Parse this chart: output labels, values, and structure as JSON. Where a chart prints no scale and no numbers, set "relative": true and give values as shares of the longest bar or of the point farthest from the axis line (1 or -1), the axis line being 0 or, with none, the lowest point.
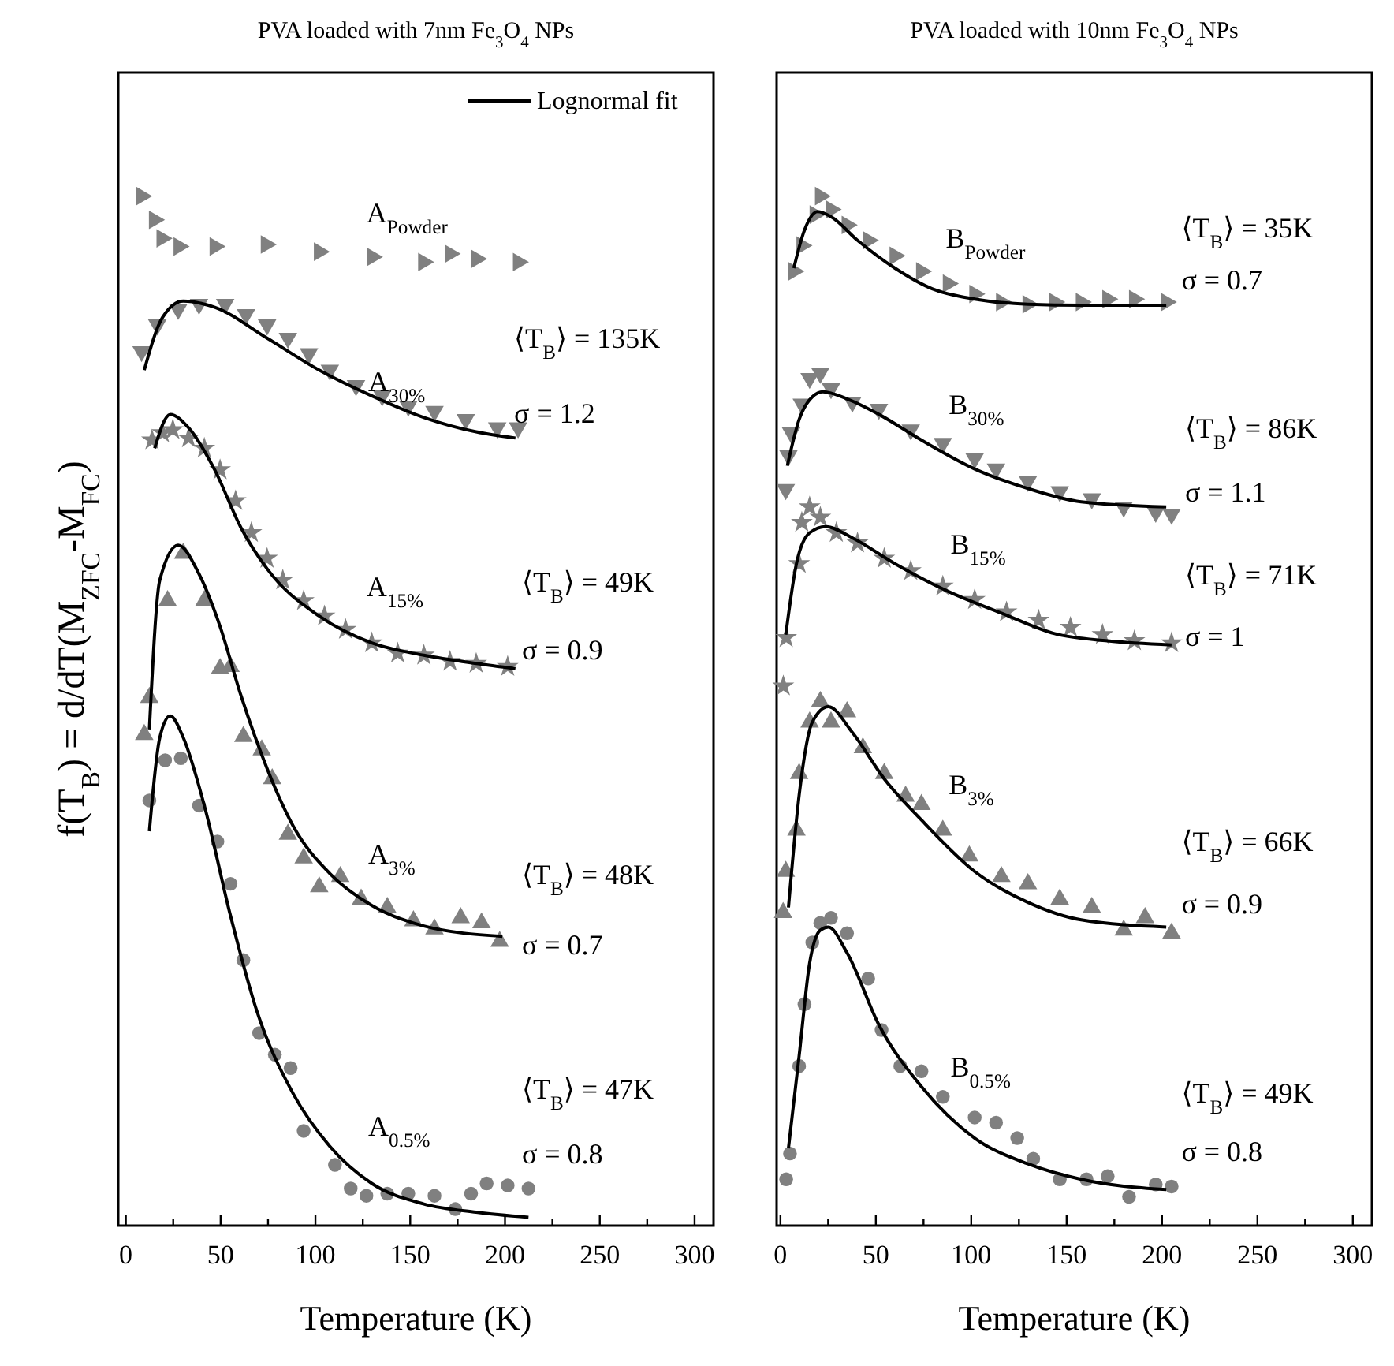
{
  "chart_data": [
    {
      "type": "scatter",
      "relative": true,
      "title": "PVA loaded with 7nm Fe$_{3}$O$_{4}$ NPs",
      "xlabel": "Temperature (K)",
      "ylabel": "f(T$_{B}$) = d/dT(M$_{ZFC}$-M$_{FC}$)",
      "xlim": [
        -4,
        310
      ],
      "xticks": [
        0,
        {
          "value": 25,
          "label": null
        },
        50,
        {
          "value": 75,
          "label": null
        },
        100,
        {
          "value": 125,
          "label": null
        },
        150,
        {
          "value": 175,
          "label": null
        },
        200,
        {
          "value": 225,
          "label": null
        },
        250,
        {
          "value": 275,
          "label": null
        },
        300
      ],
      "legend": "top right",
      "series": [
        {
          "marker": "triangle-right",
          "color": "#808080",
          "x": [
            8.3,
            15,
            19,
            28,
            47,
            74,
            102,
            130,
            157,
            171,
            185,
            207
          ],
          "values": [
            1.0,
            0.977,
            0.959,
            0.951,
            0.951,
            0.953,
            0.946,
            0.941,
            0.936,
            0.944,
            0.939,
            0.936
          ]
        },
        {
          "marker": "triangle-down",
          "color": "#808080",
          "x": [
            8.3,
            16.6,
            27.6,
            38.6,
            52.4,
            63.4,
            74.5,
            85.5,
            96.6,
            107.6,
            121.4,
            135.2,
            149,
            162.8,
            179.3,
            195.9,
            206.9
          ],
          "values": [
            0.849,
            0.875,
            0.89,
            0.895,
            0.895,
            0.885,
            0.875,
            0.862,
            0.847,
            0.831,
            0.816,
            0.806,
            0.796,
            0.791,
            0.783,
            0.775,
            0.775
          ]
        },
        {
          "marker": "star",
          "color": "#808080",
          "x": [
            13.8,
            19.3,
            24.8,
            33.1,
            41.4,
            49.7,
            57.9,
            66.2,
            74.5,
            82.8,
            93.8,
            104.8,
            115.9,
            129.7,
            143.4,
            157.2,
            171,
            184.8,
            201.4
          ],
          "values": [
            0.763,
            0.77,
            0.773,
            0.765,
            0.755,
            0.734,
            0.704,
            0.673,
            0.648,
            0.627,
            0.607,
            0.592,
            0.579,
            0.566,
            0.556,
            0.554,
            0.548,
            0.546,
            0.543
          ]
        },
        {
          "marker": "triangle",
          "color": "#808080",
          "x": [
            9.7,
            12.4,
            22,
            30.3,
            41.4,
            49.7,
            55.2,
            62,
            71.7,
            77.2,
            85.5,
            93.8,
            102,
            113.1,
            124.1,
            137.9,
            151.7,
            162.8,
            176.6,
            187.6,
            197.2
          ],
          "values": [
            0.477,
            0.513,
            0.607,
            0.653,
            0.607,
            0.541,
            0.543,
            0.475,
            0.462,
            0.434,
            0.38,
            0.357,
            0.329,
            0.339,
            0.317,
            0.309,
            0.296,
            0.288,
            0.299,
            0.294,
            0.276
          ]
        },
        {
          "marker": "circle",
          "color": "#808080",
          "x": [
            12.4,
            20.7,
            29,
            38.6,
            48.3,
            55.2,
            62,
            70.3,
            78.6,
            86.9,
            93.8,
            110.3,
            118.6,
            126.9,
            137.9,
            149,
            162.8,
            173.8,
            182.1,
            190.3,
            201.4,
            212.4
          ],
          "values": [
            0.413,
            0.452,
            0.454,
            0.408,
            0.373,
            0.332,
            0.258,
            0.187,
            0.166,
            0.153,
            0.092,
            0.059,
            0.036,
            0.029,
            0.031,
            0.031,
            0.029,
            0.016,
            0.031,
            0.041,
            0.039,
            0.036
          ]
        },
        {
          "type": "line",
          "name": "Lognormal fit",
          "color": "#000000",
          "x": [
            9.7,
            19.3,
            30.3,
            46.9,
            74.5,
            102,
            129.7,
            157.2,
            184.8,
            205.5
          ],
          "values": [
            0.831,
            0.882,
            0.898,
            0.892,
            0.862,
            0.831,
            0.806,
            0.785,
            0.771,
            0.765
          ]
        },
        {
          "type": "line",
          "color": "#000000",
          "x": [
            15.2,
            23.4,
            33.1,
            46.9,
            60.7,
            74.5,
            102,
            129.7,
            157.2,
            184.8,
            205.5
          ],
          "values": [
            0.755,
            0.788,
            0.775,
            0.734,
            0.678,
            0.638,
            0.592,
            0.566,
            0.554,
            0.546,
            0.541
          ]
        },
        {
          "type": "line",
          "color": "#000000",
          "x": [
            12.4,
            17.9,
            27.6,
            38.6,
            49.7,
            60.7,
            74.5,
            88.3,
            107.6,
            129.7,
            157.2,
            198.6
          ],
          "values": [
            0.482,
            0.627,
            0.661,
            0.633,
            0.582,
            0.515,
            0.444,
            0.388,
            0.342,
            0.311,
            0.291,
            0.281
          ]
        },
        {
          "type": "line",
          "color": "#000000",
          "x": [
            12.4,
            17.9,
            23.4,
            30.3,
            41.4,
            55.2,
            69,
            88.3,
            107.6,
            129.7,
            157.2,
            184.8,
            212.4
          ],
          "values": [
            0.383,
            0.474,
            0.495,
            0.474,
            0.408,
            0.301,
            0.209,
            0.128,
            0.077,
            0.041,
            0.021,
            0.013,
            0.008
          ]
        }
      ],
      "annotations": [
        "A$_{Powder}$",
        "A$_{30%}$",
        "⟨T$_{B}$⟩ = 135K",
        "σ = 1.2",
        "A$_{15%}$",
        "⟨T$_{B}$⟩ = 49K",
        "σ = 0.9",
        "A$_{3%}$",
        "⟨T$_{B}$⟩ = 48K",
        "σ = 0.7",
        "A$_{0.5%}$",
        "⟨T$_{B}$⟩ = 47K",
        "σ = 0.8"
      ]
    },
    {
      "type": "scatter",
      "relative": true,
      "title": "PVA loaded with 10nm Fe$_{3}$O$_{4}$ NPs",
      "xlabel": "Temperature (K)",
      "xlim": [
        -2,
        310
      ],
      "xticks": [
        0,
        {
          "value": 25,
          "label": null
        },
        50,
        {
          "value": 75,
          "label": null
        },
        100,
        {
          "value": 125,
          "label": null
        },
        150,
        {
          "value": 175,
          "label": null
        },
        200,
        {
          "value": 225,
          "label": null
        },
        250,
        {
          "value": 275,
          "label": null
        },
        300
      ],
      "series": [
        {
          "marker": "triangle-right",
          "color": "#808080",
          "x": [
            7,
            11.2,
            18.1,
            20.9,
            26.5,
            34.9,
            46,
            60,
            73.9,
            87.9,
            101.8,
            115.8,
            129.7,
            143.7,
            157.6,
            171.5,
            185.5,
            202.2
          ],
          "values": [
            0.927,
            0.952,
            0.982,
            1.0,
            0.987,
            0.972,
            0.957,
            0.942,
            0.927,
            0.915,
            0.905,
            0.897,
            0.895,
            0.897,
            0.897,
            0.9,
            0.9,
            0.897
          ]
        },
        {
          "marker": "triangle-down",
          "color": "#808080",
          "x": [
            2.8,
            4.2,
            5.6,
            11.2,
            15.3,
            20.9,
            26.5,
            37.7,
            51.6,
            68.3,
            85.1,
            101.8,
            113,
            129.7,
            146.4,
            163.2,
            179.9,
            196.7,
            205
          ],
          "values": [
            0.715,
            0.748,
            0.77,
            0.798,
            0.823,
            0.828,
            0.813,
            0.8,
            0.793,
            0.773,
            0.76,
            0.745,
            0.735,
            0.723,
            0.713,
            0.706,
            0.698,
            0.693,
            0.691
          ]
        },
        {
          "marker": "star",
          "color": "#808080",
          "x": [
            1.5,
            3,
            9.8,
            11.2,
            15.3,
            20.9,
            29.3,
            40.4,
            54.4,
            68.3,
            85.1,
            101.8,
            118.5,
            135.3,
            152,
            168.8,
            185.5,
            205
          ],
          "values": [
            0.524,
            0.571,
            0.643,
            0.683,
            0.698,
            0.688,
            0.673,
            0.663,
            0.648,
            0.636,
            0.621,
            0.608,
            0.596,
            0.588,
            0.581,
            0.574,
            0.568,
            0.566
          ]
        },
        {
          "marker": "triangle",
          "color": "#808080",
          "x": [
            1.4,
            2.8,
            8.4,
            9.8,
            15.3,
            20.9,
            26.5,
            34.9,
            43.2,
            54.4,
            65.6,
            73.9,
            85.1,
            99,
            115.8,
            129.7,
            146.4,
            163.2,
            179.9,
            191.1,
            205
          ],
          "values": [
            0.304,
            0.344,
            0.384,
            0.439,
            0.489,
            0.509,
            0.489,
            0.499,
            0.464,
            0.439,
            0.417,
            0.409,
            0.384,
            0.359,
            0.339,
            0.332,
            0.317,
            0.309,
            0.287,
            0.299,
            0.284
          ]
        },
        {
          "marker": "circle",
          "color": "#808080",
          "x": [
            3,
            5,
            9.8,
            12.6,
            16.7,
            20.9,
            26.5,
            34.9,
            46,
            53,
            62.8,
            73.9,
            85.1,
            101.8,
            113,
            124.1,
            132.5,
            146.4,
            160.4,
            171.5,
            182.7,
            196.7,
            205
          ],
          "values": [
            0.045,
            0.07,
            0.155,
            0.215,
            0.275,
            0.294,
            0.299,
            0.284,
            0.24,
            0.19,
            0.155,
            0.15,
            0.125,
            0.105,
            0.1,
            0.085,
            0.065,
            0.045,
            0.045,
            0.048,
            0.028,
            0.04,
            0.038
          ]
        },
        {
          "type": "line",
          "color": "#000000",
          "x": [
            7,
            12.6,
            19.5,
            26.5,
            40.4,
            60,
            79.5,
            101.8,
            129.7,
            157.6,
            202.2
          ],
          "values": [
            0.93,
            0.967,
            0.985,
            0.98,
            0.957,
            0.93,
            0.91,
            0.9,
            0.895,
            0.894,
            0.894
          ]
        },
        {
          "type": "line",
          "color": "#000000",
          "x": [
            3.6,
            9.8,
            16.7,
            22.3,
            34.9,
            51.6,
            73.9,
            101.8,
            129.7,
            157.6,
            202.2
          ],
          "values": [
            0.738,
            0.783,
            0.805,
            0.81,
            0.803,
            0.788,
            0.763,
            0.735,
            0.716,
            0.703,
            0.698
          ]
        },
        {
          "type": "line",
          "color": "#000000",
          "x": [
            2.8,
            8.4,
            15.3,
            23.7,
            37.7,
            60,
            87.9,
            115.8,
            143.7,
            171.5,
            205
          ],
          "values": [
            0.574,
            0.643,
            0.673,
            0.679,
            0.668,
            0.643,
            0.616,
            0.595,
            0.575,
            0.568,
            0.564
          ]
        },
        {
          "type": "line",
          "color": "#000000",
          "x": [
            4.2,
            9.8,
            16.7,
            25.1,
            37.7,
            54.4,
            73.9,
            101.8,
            129.7,
            157.6,
            202.2
          ],
          "values": [
            0.309,
            0.418,
            0.489,
            0.504,
            0.479,
            0.434,
            0.394,
            0.344,
            0.314,
            0.297,
            0.29
          ]
        },
        {
          "type": "line",
          "color": "#000000",
          "x": [
            4.2,
            9.8,
            15.3,
            20.9,
            25.1,
            34.9,
            51.6,
            73.9,
            101.8,
            129.7,
            157.6,
            202.2
          ],
          "values": [
            0.075,
            0.165,
            0.255,
            0.287,
            0.29,
            0.265,
            0.195,
            0.135,
            0.085,
            0.06,
            0.045,
            0.035
          ]
        }
      ],
      "annotations": [
        "B$_{Powder}$",
        "⟨T$_{B}$⟩ = 35K",
        "σ = 0.7",
        "B$_{30%}$",
        "⟨T$_{B}$⟩ = 86K",
        "σ = 1.1",
        "B$_{15%}$",
        "⟨T$_{B}$⟩ = 71K",
        "σ = 1",
        "B$_{3%}$",
        "⟨T$_{B}$⟩ = 66K",
        "σ = 0.9",
        "B$_{0.5%}$",
        "⟨T$_{B}$⟩ = 49K",
        "σ = 0.8"
      ]
    }
  ]
}
